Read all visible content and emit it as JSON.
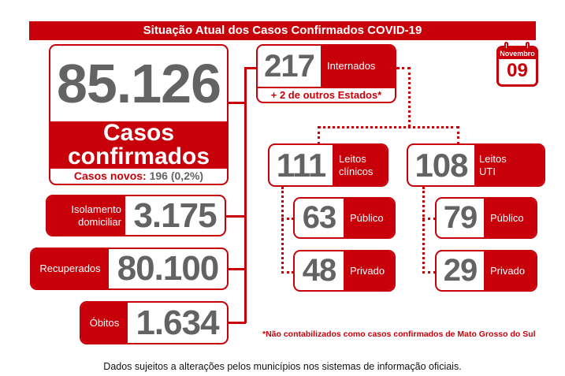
{
  "title": "Situação Atual dos Casos Confirmados COVID-19",
  "calendar": {
    "month": "Novembro",
    "day": "09"
  },
  "confirmados": {
    "value": "85.126",
    "label_line1": "Casos",
    "label_line2": "confirmados",
    "novos_label": "Casos novos:",
    "novos_value": "196 (0,2%)"
  },
  "isolamento": {
    "label_line1": "Isolamento",
    "label_line2": "domiciliar",
    "value": "3.175"
  },
  "recuperados": {
    "label": "Recuperados",
    "value": "80.100"
  },
  "obitos": {
    "label": "Óbitos",
    "value": "1.634"
  },
  "internados": {
    "value": "217",
    "label": "Internados",
    "extra": "+ 2 de outros Estados*"
  },
  "clinicos": {
    "value": "111",
    "label_line1": "Leitos",
    "label_line2": "clínicos",
    "publico": {
      "value": "63",
      "label": "Público"
    },
    "privado": {
      "value": "48",
      "label": "Privado"
    }
  },
  "uti": {
    "value": "108",
    "label_line1": "Leitos",
    "label_line2": "UTI",
    "publico": {
      "value": "79",
      "label": "Público"
    },
    "privado": {
      "value": "29",
      "label": "Privado"
    }
  },
  "footnote": "*Não contabilizados como casos confirmados de Mato Grosso do Sul",
  "disclaimer": "Dados sujeitos a alterações pelos municípios nos sistemas de informação oficiais.",
  "colors": {
    "accent": "#c8000a",
    "number": "#636363"
  }
}
